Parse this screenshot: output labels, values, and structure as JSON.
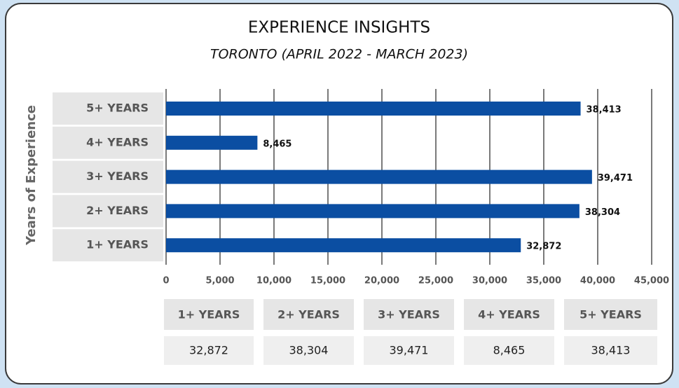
{
  "chart_data": {
    "type": "hbar",
    "title": "EXPERIENCE INSIGHTS",
    "subtitle": "TORONTO (APRIL 2022 - MARCH 2023)",
    "y_label": "Years of Experience",
    "categories": [
      "1+ YEARS",
      "2+ YEARS",
      "3+ YEARS",
      "4+ YEARS",
      "5+ YEARS"
    ],
    "values": [
      32872,
      38304,
      39471,
      8465,
      38413
    ],
    "value_labels": [
      "32,872",
      "38,304",
      "39,471",
      "8,465",
      "38,413"
    ],
    "color": "#0b4ea2",
    "xlim": [
      0,
      45000
    ],
    "xticks": [
      0,
      {
        "value": 5000,
        "label": "5,000"
      },
      {
        "value": 10000,
        "label": "10,000"
      },
      {
        "value": 15000,
        "label": "15,000"
      },
      {
        "value": 20000,
        "label": "20,000"
      },
      {
        "value": 25000,
        "label": "25,000"
      },
      {
        "value": 30000,
        "label": "30,000"
      },
      {
        "value": 35000,
        "label": "35,000"
      },
      {
        "value": 40000,
        "label": "40,000"
      },
      {
        "value": 45000,
        "label": "45,000"
      }
    ],
    "grid": true
  },
  "table": {
    "header": [
      "1+ YEARS",
      "2+ YEARS",
      "3+ YEARS",
      "4+ YEARS",
      "5+ YEARS"
    ],
    "row": [
      "32,872",
      "38,304",
      "39,471",
      "8,465",
      "38,413"
    ]
  }
}
